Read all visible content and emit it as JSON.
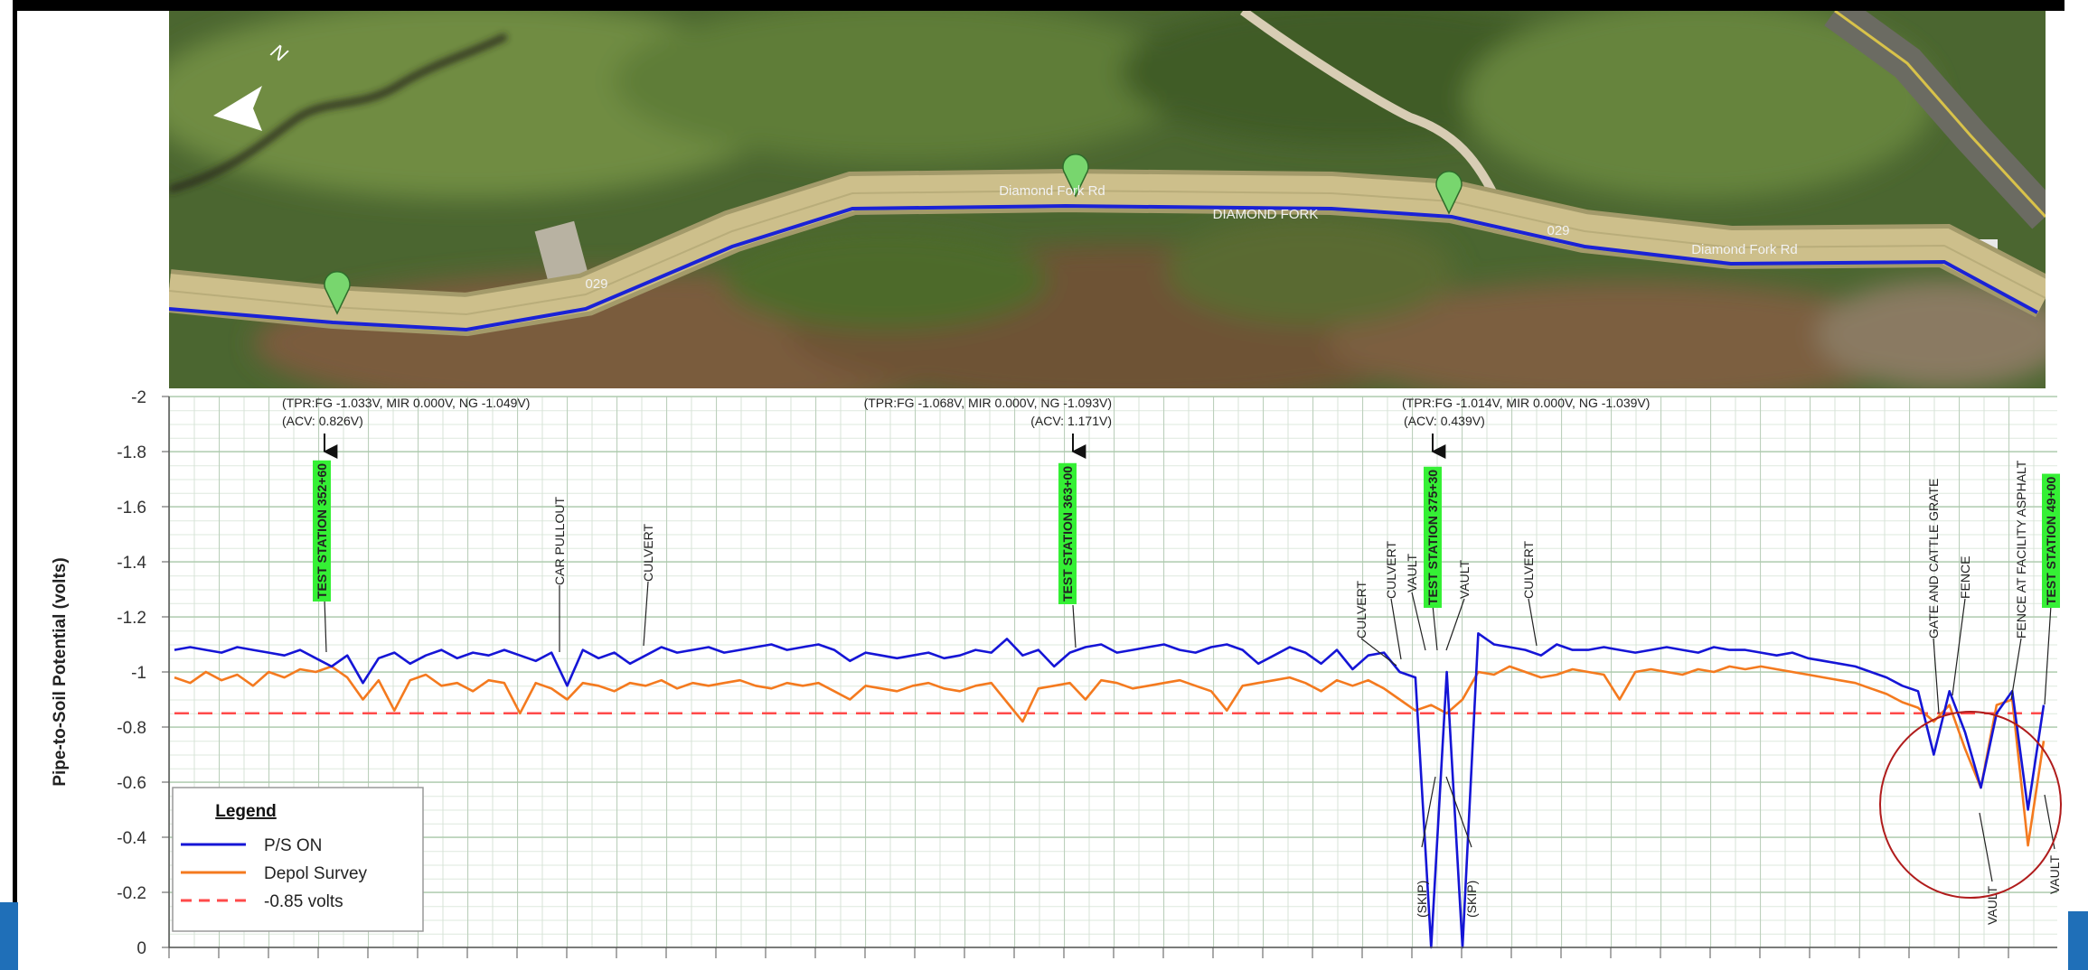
{
  "map": {
    "north": "N",
    "labels": [
      "Diamond Fork Rd",
      "DIAMOND FORK",
      "029",
      "029",
      "Diamond Fork Rd"
    ]
  },
  "chart_data": {
    "type": "line",
    "y_label": "Pipe-to-Soil Potential (volts)",
    "ylim": [
      0,
      -2
    ],
    "yticks": [
      0,
      -0.2,
      -0.4,
      -0.6,
      -0.8,
      -1,
      -1.2,
      -1.4,
      -1.6,
      -1.8,
      -2
    ],
    "grid": true,
    "legend": "lower left",
    "legend_title": "Legend",
    "series": [
      {
        "name": "P/S ON",
        "color": "#1515d6",
        "values": [
          -1.08,
          -1.09,
          -1.08,
          -1.07,
          -1.09,
          -1.08,
          -1.07,
          -1.06,
          -1.08,
          -1.05,
          -1.02,
          -1.06,
          -0.96,
          -1.05,
          -1.07,
          -1.03,
          -1.06,
          -1.08,
          -1.05,
          -1.07,
          -1.06,
          -1.08,
          -1.06,
          -1.04,
          -1.07,
          -0.95,
          -1.08,
          -1.05,
          -1.07,
          -1.03,
          -1.06,
          -1.09,
          -1.07,
          -1.08,
          -1.09,
          -1.07,
          -1.08,
          -1.09,
          -1.1,
          -1.08,
          -1.09,
          -1.1,
          -1.08,
          -1.04,
          -1.07,
          -1.06,
          -1.05,
          -1.06,
          -1.07,
          -1.05,
          -1.06,
          -1.08,
          -1.07,
          -1.12,
          -1.06,
          -1.08,
          -1.02,
          -1.07,
          -1.09,
          -1.1,
          -1.07,
          -1.08,
          -1.09,
          -1.1,
          -1.08,
          -1.07,
          -1.09,
          -1.1,
          -1.08,
          -1.03,
          -1.06,
          -1.09,
          -1.07,
          -1.03,
          -1.08,
          -1.01,
          -1.06,
          -1.07,
          -1.0,
          -0.98,
          0,
          -1.0,
          0,
          -1.14,
          -1.1,
          -1.09,
          -1.08,
          -1.06,
          -1.1,
          -1.08,
          -1.08,
          -1.09,
          -1.08,
          -1.07,
          -1.08,
          -1.09,
          -1.08,
          -1.07,
          -1.09,
          -1.08,
          -1.08,
          -1.07,
          -1.06,
          -1.07,
          -1.05,
          -1.04,
          -1.03,
          -1.02,
          -1.0,
          -0.98,
          -0.95,
          -0.93,
          -0.7,
          -0.93,
          -0.78,
          -0.58,
          -0.85,
          -0.93,
          -0.5,
          -0.88
        ]
      },
      {
        "name": "Depol Survey",
        "color": "#f47a1f",
        "values": [
          -0.98,
          -0.96,
          -1.0,
          -0.97,
          -0.99,
          -0.95,
          -1.0,
          -0.98,
          -1.01,
          -1.0,
          -1.02,
          -0.98,
          -0.9,
          -0.97,
          -0.86,
          -0.97,
          -0.99,
          -0.95,
          -0.96,
          -0.93,
          -0.97,
          -0.96,
          -0.85,
          -0.96,
          -0.94,
          -0.9,
          -0.96,
          -0.95,
          -0.93,
          -0.96,
          -0.95,
          -0.97,
          -0.94,
          -0.96,
          -0.95,
          -0.96,
          -0.97,
          -0.95,
          -0.94,
          -0.96,
          -0.95,
          -0.96,
          -0.93,
          -0.9,
          -0.95,
          -0.94,
          -0.93,
          -0.95,
          -0.96,
          -0.94,
          -0.93,
          -0.95,
          -0.96,
          -0.89,
          -0.82,
          -0.94,
          -0.95,
          -0.96,
          -0.9,
          -0.97,
          -0.96,
          -0.94,
          -0.95,
          -0.96,
          -0.97,
          -0.95,
          -0.93,
          -0.86,
          -0.95,
          -0.96,
          -0.97,
          -0.98,
          -0.96,
          -0.93,
          -0.97,
          -0.95,
          -0.97,
          -0.94,
          -0.9,
          -0.86,
          -0.88,
          -0.85,
          -0.9,
          -1.0,
          -0.99,
          -1.02,
          -1.0,
          -0.98,
          -0.99,
          -1.01,
          -1.0,
          -0.99,
          -0.9,
          -1.0,
          -1.01,
          -1.0,
          -0.99,
          -1.01,
          -1.0,
          -1.02,
          -1.01,
          -1.02,
          -1.01,
          -1.0,
          -0.99,
          -0.98,
          -0.97,
          -0.96,
          -0.94,
          -0.92,
          -0.89,
          -0.87,
          -0.82,
          -0.88,
          -0.72,
          -0.58,
          -0.88,
          -0.9,
          -0.37,
          -0.75
        ]
      }
    ],
    "threshold": {
      "name": "-0.85 volts",
      "color": "#ff4a4a",
      "value": -0.85,
      "dashed": true
    },
    "annotations": [
      "(TPR:FG -1.033V, MIR 0.000V, NG -1.049V)",
      "(ACV: 0.826V)",
      "TEST STATION 352+60",
      "CAR PULLOUT",
      "CULVERT",
      "(TPR:FG -1.068V, MIR 0.000V, NG -1.093V)",
      "(ACV: 1.171V)",
      "TEST STATION 363+00",
      "(TPR:FG -1.014V, MIR 0.000V, NG -1.039V)",
      "(ACV: 0.439V)",
      "CULVERT",
      "CULVERT",
      "VAULT",
      "TEST STATION 375+30",
      "VAULT",
      "CULVERT",
      "(SKIP)",
      "(SKIP)",
      "GATE AND CATTLE GRATE",
      "FENCE",
      "FENCE AT FACILITY ASPHALT",
      "TEST STATION 49+00",
      "VAULT",
      "VAULT"
    ]
  }
}
